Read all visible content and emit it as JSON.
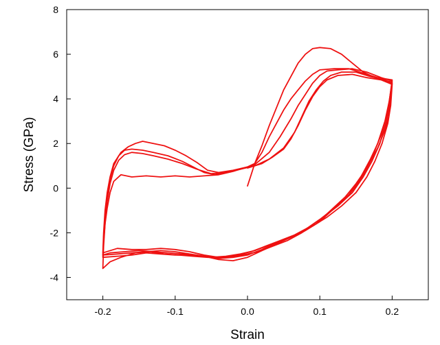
{
  "chart_data": {
    "type": "line",
    "xlabel": "Strain",
    "ylabel": "Stress (GPa)",
    "xlim": [
      -0.25,
      0.25
    ],
    "ylim": [
      -5,
      8
    ],
    "x_ticks": [
      -0.2,
      -0.1,
      0.0,
      0.1,
      0.2
    ],
    "x_tick_labels": [
      "-0.2",
      "-0.1",
      "0.0",
      "0.1",
      "0.2"
    ],
    "y_ticks": [
      -4,
      -2,
      0,
      2,
      4,
      6,
      8
    ],
    "y_tick_labels": [
      "-4",
      "-2",
      "0",
      "2",
      "4",
      "6",
      "8"
    ],
    "grid": false,
    "legend": "none",
    "line_color": "#ee1111",
    "series": [
      {
        "points": [
          [
            0.0,
            0.1
          ],
          [
            0.005,
            0.6
          ],
          [
            0.01,
            1.1
          ],
          [
            0.02,
            1.9
          ],
          [
            0.03,
            2.8
          ],
          [
            0.04,
            3.6
          ],
          [
            0.05,
            4.4
          ],
          [
            0.06,
            5.0
          ],
          [
            0.07,
            5.6
          ],
          [
            0.08,
            6.0
          ],
          [
            0.09,
            6.25
          ],
          [
            0.1,
            6.3
          ],
          [
            0.115,
            6.25
          ],
          [
            0.13,
            6.0
          ],
          [
            0.145,
            5.6
          ],
          [
            0.16,
            5.2
          ],
          [
            0.18,
            4.9
          ],
          [
            0.2,
            4.75
          ],
          [
            0.198,
            4.0
          ],
          [
            0.195,
            3.2
          ],
          [
            0.19,
            2.6
          ],
          [
            0.18,
            1.8
          ],
          [
            0.17,
            1.2
          ],
          [
            0.16,
            0.6
          ],
          [
            0.15,
            0.1
          ],
          [
            0.14,
            -0.3
          ],
          [
            0.12,
            -0.9
          ],
          [
            0.1,
            -1.5
          ],
          [
            0.08,
            -1.9
          ],
          [
            0.06,
            -2.2
          ],
          [
            0.04,
            -2.5
          ],
          [
            0.02,
            -2.8
          ],
          [
            0.0,
            -3.1
          ],
          [
            -0.02,
            -3.25
          ],
          [
            -0.04,
            -3.2
          ],
          [
            -0.06,
            -3.05
          ],
          [
            -0.08,
            -2.95
          ],
          [
            -0.1,
            -2.85
          ],
          [
            -0.12,
            -2.8
          ],
          [
            -0.14,
            -2.85
          ],
          [
            -0.16,
            -2.9
          ],
          [
            -0.18,
            -2.95
          ],
          [
            -0.2,
            -3.0
          ],
          [
            -0.199,
            -2.4
          ],
          [
            -0.197,
            -1.6
          ],
          [
            -0.194,
            -0.9
          ],
          [
            -0.19,
            -0.2
          ],
          [
            -0.185,
            0.3
          ],
          [
            -0.175,
            0.6
          ],
          [
            -0.16,
            0.5
          ],
          [
            -0.14,
            0.55
          ],
          [
            -0.12,
            0.5
          ],
          [
            -0.1,
            0.55
          ],
          [
            -0.08,
            0.5
          ],
          [
            -0.06,
            0.55
          ],
          [
            -0.04,
            0.6
          ],
          [
            -0.02,
            0.75
          ],
          [
            0.0,
            0.95
          ],
          [
            0.01,
            1.1
          ]
        ]
      },
      {
        "points": [
          [
            0.01,
            1.1
          ],
          [
            0.02,
            1.6
          ],
          [
            0.03,
            2.3
          ],
          [
            0.04,
            2.9
          ],
          [
            0.05,
            3.5
          ],
          [
            0.06,
            4.0
          ],
          [
            0.07,
            4.4
          ],
          [
            0.08,
            4.8
          ],
          [
            0.09,
            5.1
          ],
          [
            0.1,
            5.3
          ],
          [
            0.12,
            5.35
          ],
          [
            0.14,
            5.35
          ],
          [
            0.16,
            5.15
          ],
          [
            0.18,
            4.95
          ],
          [
            0.2,
            4.85
          ],
          [
            0.197,
            4.1
          ],
          [
            0.193,
            3.3
          ],
          [
            0.185,
            2.4
          ],
          [
            0.175,
            1.6
          ],
          [
            0.165,
            0.9
          ],
          [
            0.15,
            0.2
          ],
          [
            0.135,
            -0.4
          ],
          [
            0.115,
            -1.0
          ],
          [
            0.095,
            -1.6
          ],
          [
            0.075,
            -2.0
          ],
          [
            0.055,
            -2.35
          ],
          [
            0.035,
            -2.6
          ],
          [
            0.015,
            -2.85
          ],
          [
            0.0,
            -2.95
          ],
          [
            -0.02,
            -3.05
          ],
          [
            -0.04,
            -3.1
          ],
          [
            -0.06,
            -3.0
          ],
          [
            -0.08,
            -2.85
          ],
          [
            -0.1,
            -2.75
          ],
          [
            -0.12,
            -2.7
          ],
          [
            -0.14,
            -2.75
          ],
          [
            -0.16,
            -2.75
          ],
          [
            -0.18,
            -2.7
          ],
          [
            -0.2,
            -2.9
          ],
          [
            -0.199,
            -2.0
          ],
          [
            -0.197,
            -1.0
          ],
          [
            -0.194,
            -0.2
          ],
          [
            -0.19,
            0.5
          ],
          [
            -0.185,
            1.1
          ],
          [
            -0.175,
            1.6
          ],
          [
            -0.165,
            1.85
          ],
          [
            -0.155,
            2.0
          ],
          [
            -0.145,
            2.1
          ],
          [
            -0.13,
            2.0
          ],
          [
            -0.115,
            1.9
          ],
          [
            -0.1,
            1.7
          ],
          [
            -0.085,
            1.45
          ],
          [
            -0.07,
            1.15
          ],
          [
            -0.055,
            0.8
          ],
          [
            -0.04,
            0.7
          ],
          [
            -0.02,
            0.8
          ],
          [
            0.0,
            0.95
          ],
          [
            0.01,
            1.1
          ]
        ]
      },
      {
        "points": [
          [
            0.01,
            1.05
          ],
          [
            0.03,
            1.6
          ],
          [
            0.045,
            2.3
          ],
          [
            0.06,
            3.1
          ],
          [
            0.07,
            3.7
          ],
          [
            0.08,
            4.2
          ],
          [
            0.09,
            4.7
          ],
          [
            0.1,
            5.05
          ],
          [
            0.11,
            5.25
          ],
          [
            0.125,
            5.3
          ],
          [
            0.145,
            5.35
          ],
          [
            0.165,
            5.2
          ],
          [
            0.185,
            4.95
          ],
          [
            0.2,
            4.8
          ],
          [
            0.196,
            3.9
          ],
          [
            0.19,
            3.0
          ],
          [
            0.18,
            2.0
          ],
          [
            0.17,
            1.3
          ],
          [
            0.155,
            0.4
          ],
          [
            0.14,
            -0.3
          ],
          [
            0.12,
            -0.9
          ],
          [
            0.1,
            -1.4
          ],
          [
            0.08,
            -1.85
          ],
          [
            0.06,
            -2.2
          ],
          [
            0.04,
            -2.45
          ],
          [
            0.02,
            -2.75
          ],
          [
            0.0,
            -3.0
          ],
          [
            -0.02,
            -3.1
          ],
          [
            -0.04,
            -3.15
          ],
          [
            -0.06,
            -3.05
          ],
          [
            -0.08,
            -3.0
          ],
          [
            -0.1,
            -3.0
          ],
          [
            -0.12,
            -2.95
          ],
          [
            -0.14,
            -2.9
          ],
          [
            -0.16,
            -3.0
          ],
          [
            -0.18,
            -3.05
          ],
          [
            -0.2,
            -3.1
          ],
          [
            -0.199,
            -2.2
          ],
          [
            -0.197,
            -1.2
          ],
          [
            -0.194,
            -0.3
          ],
          [
            -0.19,
            0.4
          ],
          [
            -0.185,
            1.0
          ],
          [
            -0.178,
            1.45
          ],
          [
            -0.17,
            1.7
          ],
          [
            -0.16,
            1.75
          ],
          [
            -0.145,
            1.7
          ],
          [
            -0.13,
            1.6
          ],
          [
            -0.11,
            1.45
          ],
          [
            -0.09,
            1.2
          ],
          [
            -0.075,
            0.95
          ],
          [
            -0.06,
            0.7
          ],
          [
            -0.045,
            0.6
          ],
          [
            -0.03,
            0.7
          ],
          [
            -0.01,
            0.85
          ],
          [
            0.01,
            1.05
          ]
        ]
      },
      {
        "points": [
          [
            0.01,
            1.0
          ],
          [
            0.03,
            1.3
          ],
          [
            0.05,
            1.8
          ],
          [
            0.065,
            2.5
          ],
          [
            0.075,
            3.2
          ],
          [
            0.085,
            3.9
          ],
          [
            0.095,
            4.4
          ],
          [
            0.105,
            4.8
          ],
          [
            0.115,
            5.05
          ],
          [
            0.13,
            5.2
          ],
          [
            0.15,
            5.2
          ],
          [
            0.17,
            5.0
          ],
          [
            0.19,
            4.85
          ],
          [
            0.2,
            4.7
          ],
          [
            0.197,
            3.8
          ],
          [
            0.192,
            3.0
          ],
          [
            0.183,
            2.0
          ],
          [
            0.172,
            1.2
          ],
          [
            0.16,
            0.5
          ],
          [
            0.145,
            -0.2
          ],
          [
            0.125,
            -0.8
          ],
          [
            0.105,
            -1.3
          ],
          [
            0.085,
            -1.75
          ],
          [
            0.065,
            -2.1
          ],
          [
            0.045,
            -2.35
          ],
          [
            0.025,
            -2.6
          ],
          [
            0.005,
            -2.85
          ],
          [
            -0.015,
            -3.0
          ],
          [
            -0.035,
            -3.1
          ],
          [
            -0.055,
            -3.1
          ],
          [
            -0.075,
            -3.05
          ],
          [
            -0.095,
            -3.0
          ],
          [
            -0.115,
            -2.95
          ],
          [
            -0.135,
            -2.85
          ],
          [
            -0.155,
            -2.9
          ],
          [
            -0.175,
            -3.1
          ],
          [
            -0.19,
            -3.3
          ],
          [
            -0.2,
            -3.6
          ],
          [
            -0.199,
            -2.6
          ],
          [
            -0.197,
            -1.6
          ],
          [
            -0.194,
            -0.6
          ],
          [
            -0.19,
            0.2
          ],
          [
            -0.185,
            0.8
          ],
          [
            -0.178,
            1.25
          ],
          [
            -0.17,
            1.5
          ],
          [
            -0.16,
            1.6
          ],
          [
            -0.145,
            1.55
          ],
          [
            -0.13,
            1.45
          ],
          [
            -0.11,
            1.3
          ],
          [
            -0.09,
            1.1
          ],
          [
            -0.07,
            0.85
          ],
          [
            -0.05,
            0.65
          ],
          [
            -0.03,
            0.7
          ],
          [
            -0.01,
            0.85
          ],
          [
            0.01,
            1.0
          ]
        ]
      },
      {
        "points": [
          [
            0.0,
            0.9
          ],
          [
            0.02,
            1.1
          ],
          [
            0.035,
            1.4
          ],
          [
            0.05,
            1.75
          ],
          [
            0.06,
            2.2
          ],
          [
            0.07,
            2.8
          ],
          [
            0.08,
            3.5
          ],
          [
            0.09,
            4.1
          ],
          [
            0.1,
            4.55
          ],
          [
            0.11,
            4.85
          ],
          [
            0.125,
            5.05
          ],
          [
            0.145,
            5.1
          ],
          [
            0.165,
            4.95
          ],
          [
            0.185,
            4.85
          ],
          [
            0.2,
            4.65
          ],
          [
            0.198,
            3.7
          ],
          [
            0.194,
            2.9
          ],
          [
            0.186,
            2.0
          ],
          [
            0.176,
            1.2
          ],
          [
            0.165,
            0.5
          ],
          [
            0.15,
            -0.2
          ],
          [
            0.13,
            -0.8
          ],
          [
            0.11,
            -1.3
          ],
          [
            0.09,
            -1.7
          ],
          [
            0.07,
            -2.05
          ],
          [
            0.05,
            -2.3
          ],
          [
            0.03,
            -2.55
          ],
          [
            0.01,
            -2.8
          ],
          [
            -0.01,
            -2.95
          ],
          [
            -0.03,
            -3.05
          ],
          [
            -0.05,
            -3.1
          ],
          [
            -0.07,
            -3.0
          ],
          [
            -0.09,
            -2.95
          ],
          [
            -0.11,
            -2.9
          ],
          [
            -0.13,
            -2.85
          ],
          [
            -0.15,
            -2.8
          ],
          [
            -0.17,
            -2.85
          ],
          [
            -0.19,
            -2.9
          ],
          [
            -0.2,
            -3.0
          ]
        ]
      }
    ]
  }
}
